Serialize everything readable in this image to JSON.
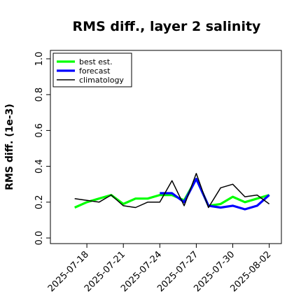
{
  "chart_data": {
    "type": "line",
    "title": "RMS diff., layer 2 salinity",
    "ylabel": "RMS diff. (1e-3)",
    "xlabel": "",
    "ylim": [
      0.0,
      1.0
    ],
    "yticks": [
      "0.0",
      "0.2",
      "0.4",
      "0.6",
      "0.8",
      "1.0"
    ],
    "x_range": [
      "2025-07-15",
      "2025-08-03"
    ],
    "xticks": [
      {
        "date": "2025-07-18",
        "label": "2025-07-18",
        "color": "#000000"
      },
      {
        "date": "2025-07-21",
        "label": "2025-07-21",
        "color": "#000000"
      },
      {
        "date": "2025-07-24",
        "label": "2025-07-24",
        "color": "#228B22"
      },
      {
        "date": "2025-07-27",
        "label": "2025-07-27",
        "color": "#000000"
      },
      {
        "date": "2025-07-30",
        "label": "2025-07-30",
        "color": "#000000"
      },
      {
        "date": "2025-08-02",
        "label": "2025-08-02",
        "color": "#000000"
      }
    ],
    "legend_position": "top-left",
    "series": [
      {
        "name": "best est.",
        "color": "#00ff00",
        "x": [
          "2025-07-17",
          "2025-07-18",
          "2025-07-19",
          "2025-07-20",
          "2025-07-21",
          "2025-07-22",
          "2025-07-23",
          "2025-07-24",
          "2025-07-25",
          "2025-07-26",
          "2025-07-27",
          "2025-07-28",
          "2025-07-29",
          "2025-07-30",
          "2025-07-31",
          "2025-08-01",
          "2025-08-02"
        ],
        "y": [
          0.17,
          0.2,
          0.22,
          0.24,
          0.19,
          0.22,
          0.22,
          0.24,
          0.24,
          0.21,
          0.33,
          0.18,
          0.19,
          0.23,
          0.2,
          0.22,
          0.24
        ]
      },
      {
        "name": "forecast",
        "color": "#0000ff",
        "x": [
          "2025-07-24",
          "2025-07-25",
          "2025-07-26",
          "2025-07-27",
          "2025-07-28",
          "2025-07-29",
          "2025-07-30",
          "2025-07-31",
          "2025-08-01",
          "2025-08-02"
        ],
        "y": [
          0.25,
          0.25,
          0.2,
          0.33,
          0.18,
          0.17,
          0.18,
          0.16,
          0.18,
          0.24
        ]
      },
      {
        "name": "climatology",
        "color": "#000000",
        "x": [
          "2025-07-17",
          "2025-07-18",
          "2025-07-19",
          "2025-07-20",
          "2025-07-21",
          "2025-07-22",
          "2025-07-23",
          "2025-07-24",
          "2025-07-25",
          "2025-07-26",
          "2025-07-27",
          "2025-07-28",
          "2025-07-29",
          "2025-07-30",
          "2025-07-31",
          "2025-08-01",
          "2025-08-02"
        ],
        "y": [
          0.22,
          0.21,
          0.2,
          0.24,
          0.18,
          0.17,
          0.2,
          0.2,
          0.32,
          0.18,
          0.36,
          0.17,
          0.28,
          0.3,
          0.23,
          0.24,
          0.19
        ]
      }
    ]
  }
}
